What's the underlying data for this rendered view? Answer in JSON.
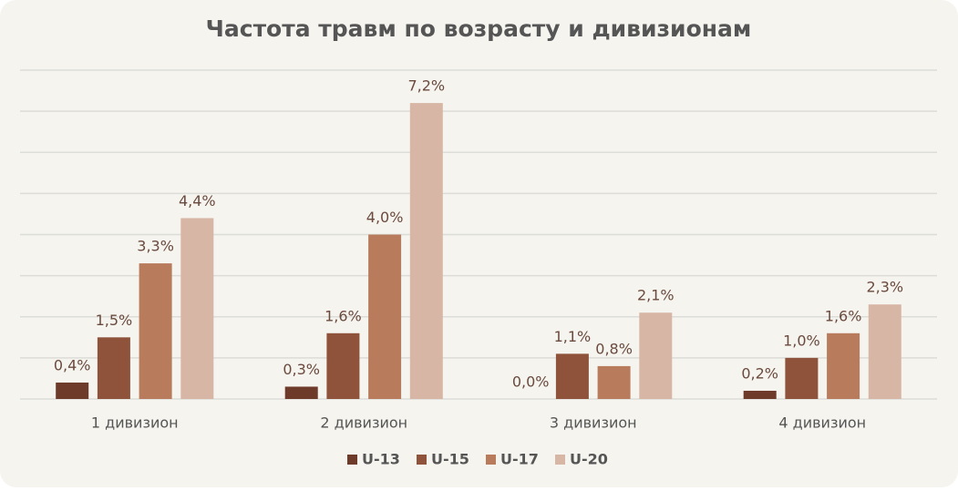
{
  "chart_data": {
    "type": "bar",
    "title": "Частота травм по возрасту и дивизионам",
    "categories": [
      "1 дивизион",
      "2 дивизион",
      "3 дивизион",
      "4 дивизион"
    ],
    "series": [
      {
        "name": "U-13",
        "color": "#6e3b2b",
        "values": [
          0.4,
          0.3,
          0.0,
          0.2
        ],
        "value_labels": [
          "0,4%",
          "0,3%",
          "0,0%",
          "0,2%"
        ]
      },
      {
        "name": "U-15",
        "color": "#8f533b",
        "values": [
          1.5,
          1.6,
          1.1,
          1.0
        ],
        "value_labels": [
          "1,5%",
          "1,6%",
          "1,1%",
          "1,0%"
        ]
      },
      {
        "name": "U-17",
        "color": "#b87c5d",
        "values": [
          3.3,
          4.0,
          0.8,
          1.6
        ],
        "value_labels": [
          "3,3%",
          "4,0%",
          "0,8%",
          "1,6%"
        ]
      },
      {
        "name": "U-20",
        "color": "#d8b6a6",
        "values": [
          4.4,
          7.2,
          2.1,
          2.3
        ],
        "value_labels": [
          "4,4%",
          "7,2%",
          "2,1%",
          "2,3%"
        ]
      }
    ],
    "ylim": [
      0,
      8
    ],
    "yticks": [
      0,
      1,
      2,
      3,
      4,
      5,
      6,
      7,
      8
    ],
    "grid": true,
    "legend": "bottom"
  }
}
